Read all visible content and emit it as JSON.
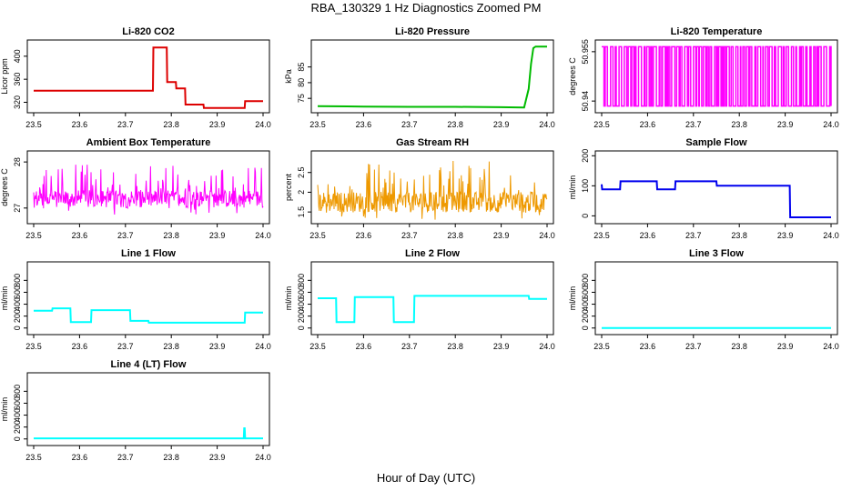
{
  "figure": {
    "title": "RBA_130329  1 Hz Diagnostics Zoomed PM",
    "xlabel": "Hour of Day (UTC)"
  },
  "chart_data": [
    {
      "type": "line",
      "title": "Li-820 CO2",
      "ylabel": "Licor ppm",
      "xlim": [
        23.5,
        24.0
      ],
      "xticks": [
        "23.5",
        "23.6",
        "23.7",
        "23.8",
        "23.9",
        "24.0"
      ],
      "ylim": [
        305,
        425
      ],
      "yticks": [
        320,
        360,
        400
      ],
      "color": "#dd0000",
      "x": [
        23.5,
        23.76,
        23.761,
        23.79,
        23.791,
        23.81,
        23.811,
        23.83,
        23.831,
        23.87,
        23.871,
        23.96,
        23.961,
        24.0
      ],
      "y": [
        340,
        340,
        415,
        415,
        355,
        355,
        344,
        344,
        316,
        316,
        310,
        310,
        322,
        322
      ]
    },
    {
      "type": "line",
      "title": "Li-820 Pressure",
      "ylabel": "kPa",
      "xlim": [
        23.5,
        24.0
      ],
      "xticks": [
        "23.5",
        "23.6",
        "23.7",
        "23.8",
        "23.9",
        "24.0"
      ],
      "ylim": [
        71,
        93
      ],
      "yticks": [
        75,
        80,
        85
      ],
      "color": "#00bb00",
      "x": [
        23.5,
        23.6,
        23.7,
        23.8,
        23.9,
        23.95,
        23.96,
        23.965,
        23.97,
        23.975,
        24.0
      ],
      "y": [
        72.5,
        72.4,
        72.3,
        72.3,
        72.2,
        72.1,
        78,
        86,
        91,
        91.5,
        91.5
      ]
    },
    {
      "type": "line",
      "title": "Li-820 Temperature",
      "ylabel": "degrees C",
      "xlim": [
        23.5,
        24.0
      ],
      "xticks": [
        "23.5",
        "23.6",
        "23.7",
        "23.8",
        "23.9",
        "24.0"
      ],
      "ylim": [
        50.937,
        50.958
      ],
      "yticks": [
        50.94,
        50.955
      ],
      "color": "#ff00ff",
      "levels": [
        50.9385,
        50.9565
      ]
    },
    {
      "type": "line",
      "title": "Ambient Box Temperature",
      "ylabel": "degrees C",
      "xlim": [
        23.5,
        24.0
      ],
      "xticks": [
        "23.5",
        "23.6",
        "23.7",
        "23.8",
        "23.9",
        "24.0"
      ],
      "ylim": [
        26.7,
        28.2
      ],
      "yticks": [
        27.0,
        28.0
      ],
      "color": "#ff00ff",
      "baseline": 27.2,
      "range": [
        26.85,
        27.95
      ]
    },
    {
      "type": "line",
      "title": "Gas Stream RH",
      "ylabel": "percent",
      "xlim": [
        23.5,
        24.0
      ],
      "xticks": [
        "23.5",
        "23.6",
        "23.7",
        "23.8",
        "23.9",
        "24.0"
      ],
      "ylim": [
        1.25,
        3.0
      ],
      "yticks": [
        1.5,
        2.0,
        2.5
      ],
      "color": "#ee9900",
      "baseline": 1.75,
      "range": [
        1.3,
        2.8
      ]
    },
    {
      "type": "line",
      "title": "Sample Flow",
      "ylabel": "ml/min",
      "xlim": [
        23.5,
        24.0
      ],
      "xticks": [
        "23.5",
        "23.6",
        "23.7",
        "23.8",
        "23.9",
        "24.0"
      ],
      "ylim": [
        -20,
        210
      ],
      "yticks": [
        0,
        100,
        200
      ],
      "color": "#0000ee",
      "x": [
        23.5,
        23.501,
        23.54,
        23.541,
        23.62,
        23.621,
        23.66,
        23.661,
        23.75,
        23.751,
        23.91,
        23.911,
        24.0
      ],
      "y": [
        105,
        88,
        88,
        115,
        115,
        88,
        88,
        115,
        115,
        100,
        100,
        -5,
        -5
      ]
    },
    {
      "type": "line",
      "title": "Line 1 Flow",
      "ylabel": "ml/min",
      "xlim": [
        23.5,
        24.0
      ],
      "xticks": [
        "23.5",
        "23.6",
        "23.7",
        "23.8",
        "23.9",
        "24.0"
      ],
      "ylim": [
        -80,
        1080
      ],
      "yticks": [
        0,
        200,
        400,
        600,
        800
      ],
      "color": "#00ffff",
      "x": [
        23.5,
        23.54,
        23.541,
        23.58,
        23.581,
        23.625,
        23.626,
        23.71,
        23.711,
        23.75,
        23.751,
        23.96,
        23.961,
        24.0
      ],
      "y": [
        290,
        290,
        330,
        330,
        100,
        100,
        300,
        300,
        120,
        120,
        90,
        90,
        260,
        260
      ]
    },
    {
      "type": "line",
      "title": "Line 2 Flow",
      "ylabel": "ml/min",
      "xlim": [
        23.5,
        24.0
      ],
      "xticks": [
        "23.5",
        "23.6",
        "23.7",
        "23.8",
        "23.9",
        "24.0"
      ],
      "ylim": [
        -80,
        1080
      ],
      "yticks": [
        0,
        200,
        400,
        600,
        800
      ],
      "color": "#00ffff",
      "x": [
        23.5,
        23.54,
        23.541,
        23.58,
        23.581,
        23.665,
        23.666,
        23.71,
        23.711,
        23.96,
        23.961,
        24.0
      ],
      "y": [
        500,
        500,
        100,
        100,
        520,
        520,
        100,
        100,
        540,
        540,
        490,
        490
      ]
    },
    {
      "type": "line",
      "title": "Line 3 Flow",
      "ylabel": "ml/min",
      "xlim": [
        23.5,
        24.0
      ],
      "xticks": [
        "23.5",
        "23.6",
        "23.7",
        "23.8",
        "23.9",
        "24.0"
      ],
      "ylim": [
        -80,
        1080
      ],
      "yticks": [
        0,
        200,
        400,
        600,
        800
      ],
      "color": "#00ffff",
      "x": [
        23.5,
        24.0
      ],
      "y": [
        0,
        0
      ]
    },
    {
      "type": "line",
      "title": "Line 4 (LT) Flow",
      "ylabel": "ml/min",
      "xlim": [
        23.5,
        24.0
      ],
      "xticks": [
        "23.5",
        "23.6",
        "23.7",
        "23.8",
        "23.9",
        "24.0"
      ],
      "ylim": [
        -80,
        1080
      ],
      "yticks": [
        0,
        200,
        400,
        600,
        800
      ],
      "color": "#00ffff",
      "x": [
        23.5,
        23.958,
        23.959,
        23.96,
        23.961,
        24.0
      ],
      "y": [
        10,
        10,
        180,
        180,
        10,
        10
      ]
    }
  ]
}
